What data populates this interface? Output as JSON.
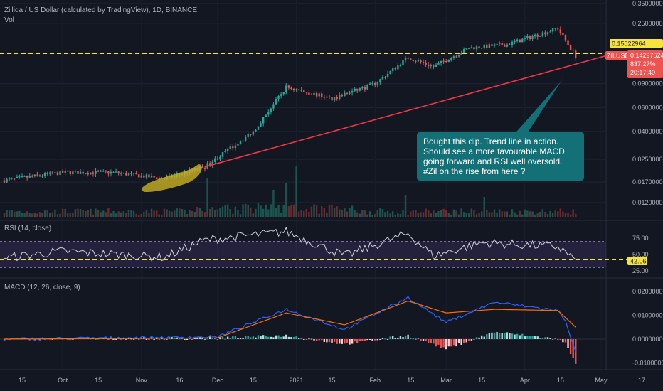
{
  "header": {
    "main_title": "Zilliqa / US Dollar (calculated by TradingView), 1D, BINANCE",
    "vol_label": "Vol",
    "rsi_label": "RSI (14, close)",
    "macd_label": "MACD (12, 26, close, 9)"
  },
  "annotation": {
    "text": "Bought this dip. Trend line in action.  Should see a more favourable MACD going forward and RSI well oversold. #Zil on the rise from here ?"
  },
  "price_tags": {
    "hline_value": "0.15022964",
    "symbol": "ZILUSD",
    "last_price": "0.14297524",
    "change_pct": "837.27%",
    "countdown": "20:17:40"
  },
  "rsi_tag": "42.06",
  "colors": {
    "background": "#131722",
    "up": "#26a69a",
    "down": "#ef5350",
    "hline": "#f6e33c",
    "trendline": "#f23645",
    "annotation": "#137077",
    "highlight": "#c9b324",
    "rsi_line": "#d1d4dc",
    "rsi_band": "#7e57c2",
    "macd_line": "#2962ff",
    "signal_line": "#ff6d00"
  },
  "chart_data": [
    {
      "type": "candlestick",
      "title": "Zilliqa / US Dollar (calculated by TradingView), 1D, BINANCE",
      "x_ticks": [
        "15",
        "Oct",
        "15",
        "Nov",
        "16",
        "Dec",
        "15",
        "2021",
        "15",
        "Feb",
        "15",
        "Mar",
        "15",
        "Apr",
        "15",
        "May",
        "17"
      ],
      "price_scale": "log",
      "price_ticks": [
        "0.35000000",
        "0.25000000",
        "0.15000000",
        "0.09000000",
        "0.06000000",
        "0.04000000",
        "0.02500000",
        "0.01700000",
        "0.01200000"
      ],
      "approx_close_path": [
        {
          "date": "Sep 8",
          "price": 0.0175
        },
        {
          "date": "Oct 1",
          "price": 0.02
        },
        {
          "date": "Oct 21",
          "price": 0.02
        },
        {
          "date": "Nov 10",
          "price": 0.018
        },
        {
          "date": "Nov 26",
          "price": 0.022
        },
        {
          "date": "Dec 15",
          "price": 0.04
        },
        {
          "date": "Dec 28",
          "price": 0.085
        },
        {
          "date": "Jan 15",
          "price": 0.07
        },
        {
          "date": "Feb 1",
          "price": 0.09
        },
        {
          "date": "Feb 14",
          "price": 0.14
        },
        {
          "date": "Feb 24",
          "price": 0.12
        },
        {
          "date": "Mar 10",
          "price": 0.165
        },
        {
          "date": "Mar 25",
          "price": 0.175
        },
        {
          "date": "Apr 14",
          "price": 0.23
        },
        {
          "date": "Apr 21",
          "price": 0.143
        }
      ],
      "horizontal_line": 0.15022964,
      "trendline": {
        "from": {
          "date": "Nov 26",
          "price": 0.022
        },
        "to": {
          "date": "May 6",
          "price": 0.15
        }
      },
      "last_price": 0.14297524
    },
    {
      "type": "line",
      "title": "RSI (14, close)",
      "y_ticks": [
        "75.00",
        "50.00",
        "25.00"
      ],
      "last_value": 42.06,
      "approx_path": [
        {
          "date": "Sep 8",
          "value": 45
        },
        {
          "date": "Oct 1",
          "value": 55
        },
        {
          "date": "Nov 10",
          "value": 46
        },
        {
          "date": "Nov 26",
          "value": 72
        },
        {
          "date": "Dec 28",
          "value": 85
        },
        {
          "date": "Jan 20",
          "value": 48
        },
        {
          "date": "Feb 14",
          "value": 82
        },
        {
          "date": "Feb 24",
          "value": 48
        },
        {
          "date": "Mar 15",
          "value": 68
        },
        {
          "date": "Apr 14",
          "value": 62
        },
        {
          "date": "Apr 21",
          "value": 42
        }
      ]
    },
    {
      "type": "line",
      "title": "MACD (12, 26, close, 9)",
      "y_ticks": [
        "0.02000000",
        "0.01000000",
        "0.00000000",
        "-0.01000000"
      ],
      "approx_path": [
        {
          "date": "Sep 8",
          "macd": 0.0,
          "signal": 0.0
        },
        {
          "date": "Dec 1",
          "macd": 0.001,
          "signal": 0.0005
        },
        {
          "date": "Dec 28",
          "macd": 0.0125,
          "signal": 0.011
        },
        {
          "date": "Jan 20",
          "macd": 0.004,
          "signal": 0.006
        },
        {
          "date": "Feb 14",
          "macd": 0.0175,
          "signal": 0.016
        },
        {
          "date": "Mar 1",
          "macd": 0.007,
          "signal": 0.011
        },
        {
          "date": "Mar 20",
          "macd": 0.0155,
          "signal": 0.0125
        },
        {
          "date": "Apr 14",
          "macd": 0.012,
          "signal": 0.012
        },
        {
          "date": "Apr 21",
          "macd": 0.001,
          "signal": 0.005
        }
      ]
    }
  ]
}
